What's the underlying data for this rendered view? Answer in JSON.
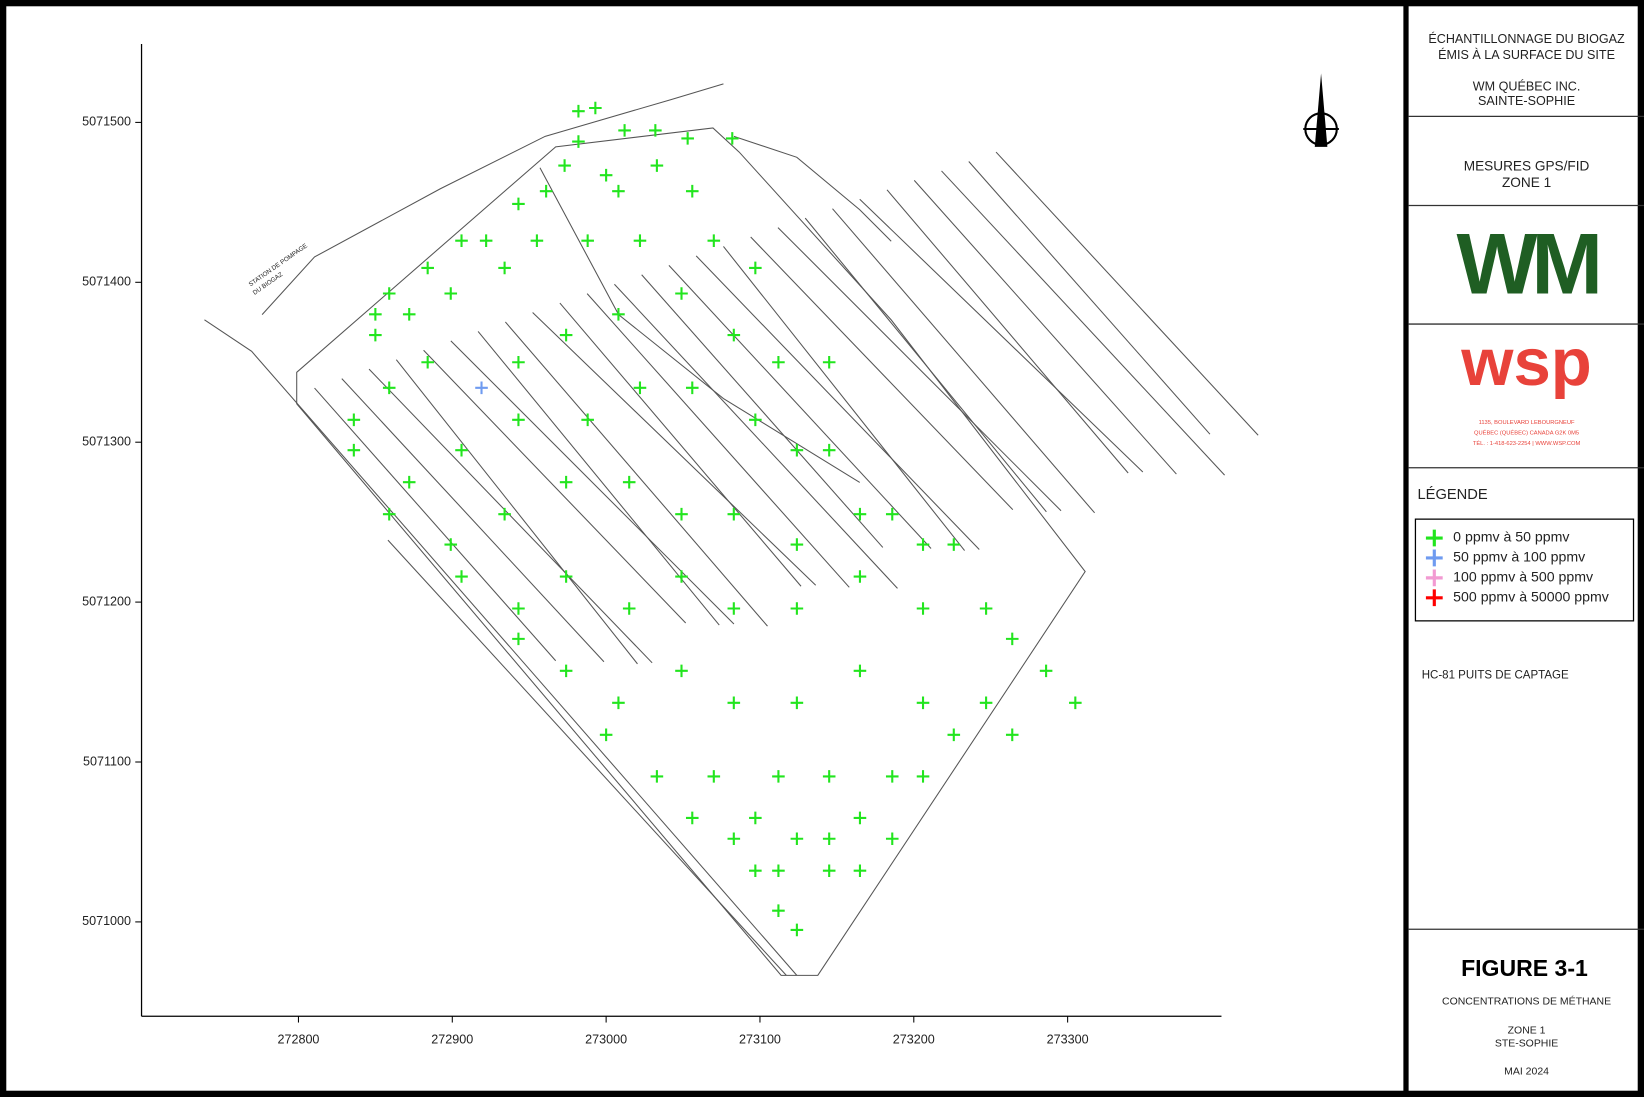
{
  "chart_data": {
    "type": "scatter",
    "xlim": [
      272698,
      273400
    ],
    "ylim": [
      5070941,
      5071549
    ],
    "xticks": [
      272800,
      272900,
      273000,
      273100,
      273200,
      273300
    ],
    "yticks": [
      5071000,
      5071100,
      5071200,
      5071300,
      5071400,
      5071500
    ],
    "series": [
      {
        "name": "0 ppmv  à  50 ppmv",
        "color": "#22e51e",
        "x": [
          272982,
          272993,
          272982,
          273012,
          273032,
          273053,
          273082,
          272973,
          273000,
          273033,
          272961,
          273008,
          273056,
          272943,
          272922,
          272906,
          272884,
          272859,
          272850,
          272850,
          272872,
          272899,
          272934,
          272955,
          272988,
          273022,
          273070,
          273097,
          272836,
          272859,
          272884,
          272943,
          272974,
          273008,
          273049,
          273083,
          273112,
          273145,
          272836,
          272872,
          272906,
          272943,
          272988,
          273022,
          273056,
          273097,
          273124,
          273145,
          272859,
          272899,
          272934,
          272974,
          273015,
          273049,
          273083,
          273124,
          273165,
          273186,
          273206,
          273226,
          272906,
          272943,
          272974,
          273015,
          273049,
          273083,
          273124,
          273165,
          273206,
          273247,
          273264,
          273286,
          273305,
          272943,
          272974,
          273008,
          273049,
          273083,
          273124,
          273165,
          273206,
          273247,
          273264,
          273226,
          273000,
          273033,
          273070,
          273097,
          273112,
          273145,
          273186,
          273206,
          273056,
          273083,
          273112,
          273124,
          273145,
          273165,
          273186,
          273097,
          273112,
          273124,
          273145,
          273165
        ],
        "y": [
          5071507,
          5071509,
          5071488,
          5071495,
          5071495,
          5071490,
          5071490,
          5071473,
          5071467,
          5071473,
          5071457,
          5071457,
          5071457,
          5071449,
          5071426,
          5071426,
          5071409,
          5071393,
          5071380,
          5071367,
          5071380,
          5071393,
          5071409,
          5071426,
          5071426,
          5071426,
          5071426,
          5071409,
          5071314,
          5071334,
          5071350,
          5071350,
          5071367,
          5071380,
          5071393,
          5071367,
          5071350,
          5071350,
          5071295,
          5071275,
          5071295,
          5071314,
          5071314,
          5071334,
          5071334,
          5071314,
          5071295,
          5071295,
          5071255,
          5071236,
          5071255,
          5071275,
          5071275,
          5071255,
          5071255,
          5071236,
          5071255,
          5071255,
          5071236,
          5071236,
          5071216,
          5071196,
          5071216,
          5071196,
          5071216,
          5071196,
          5071196,
          5071216,
          5071196,
          5071196,
          5071177,
          5071157,
          5071137,
          5071177,
          5071157,
          5071137,
          5071157,
          5071137,
          5071137,
          5071157,
          5071137,
          5071137,
          5071117,
          5071117,
          5071117,
          5071091,
          5071091,
          5071065,
          5071091,
          5071091,
          5071091,
          5071091,
          5071065,
          5071052,
          5071032,
          5071052,
          5071052,
          5071065,
          5071052,
          5071032,
          5071007,
          5070995,
          5071032,
          5071032
        ]
      },
      {
        "name": "50 ppmv  à  100 ppmv",
        "color": "#6f9bf0",
        "x": [
          272919
        ],
        "y": [
          5071334
        ]
      },
      {
        "name": "100 ppmv  à  500 ppmv",
        "color": "#f29ad2",
        "x": [],
        "y": []
      },
      {
        "name": "500 ppmv  à  50000 ppmv",
        "color": "#ff0000",
        "x": [],
        "y": []
      }
    ]
  },
  "map_labels": {
    "station": "STATION DE POMPAGE",
    "station2": "DU BIOGAZ"
  },
  "panel": {
    "title1": "ÉCHANTILLONNAGE DU BIOGAZ",
    "title2": "ÉMIS À LA SURFACE DU SITE",
    "client1": "WM QUÉBEC INC.",
    "client2": "SAINTE-SOPHIE",
    "measure1": "MESURES GPS/FID",
    "measure2": "ZONE 1",
    "wm_logo": "WM",
    "wsp_logo": "wsp",
    "wsp_addr1": "1135, BOULEVARD LEBOURGNEUF",
    "wsp_addr2": "QUÉBEC (QUÉBEC) CANADA G2K 0M5",
    "wsp_addr3": "TÉL. : 1-418-623-2254 | WWW.WSP.COM",
    "legend_title": "LÉGENDE",
    "note": "HC-81  PUITS DE CAPTAGE",
    "figure": "FIGURE 3-1",
    "fig_sub": "CONCENTRATIONS DE MÉTHANE",
    "zone": "ZONE 1",
    "place": "STE-SOPHIE",
    "date": "MAI 2024"
  }
}
